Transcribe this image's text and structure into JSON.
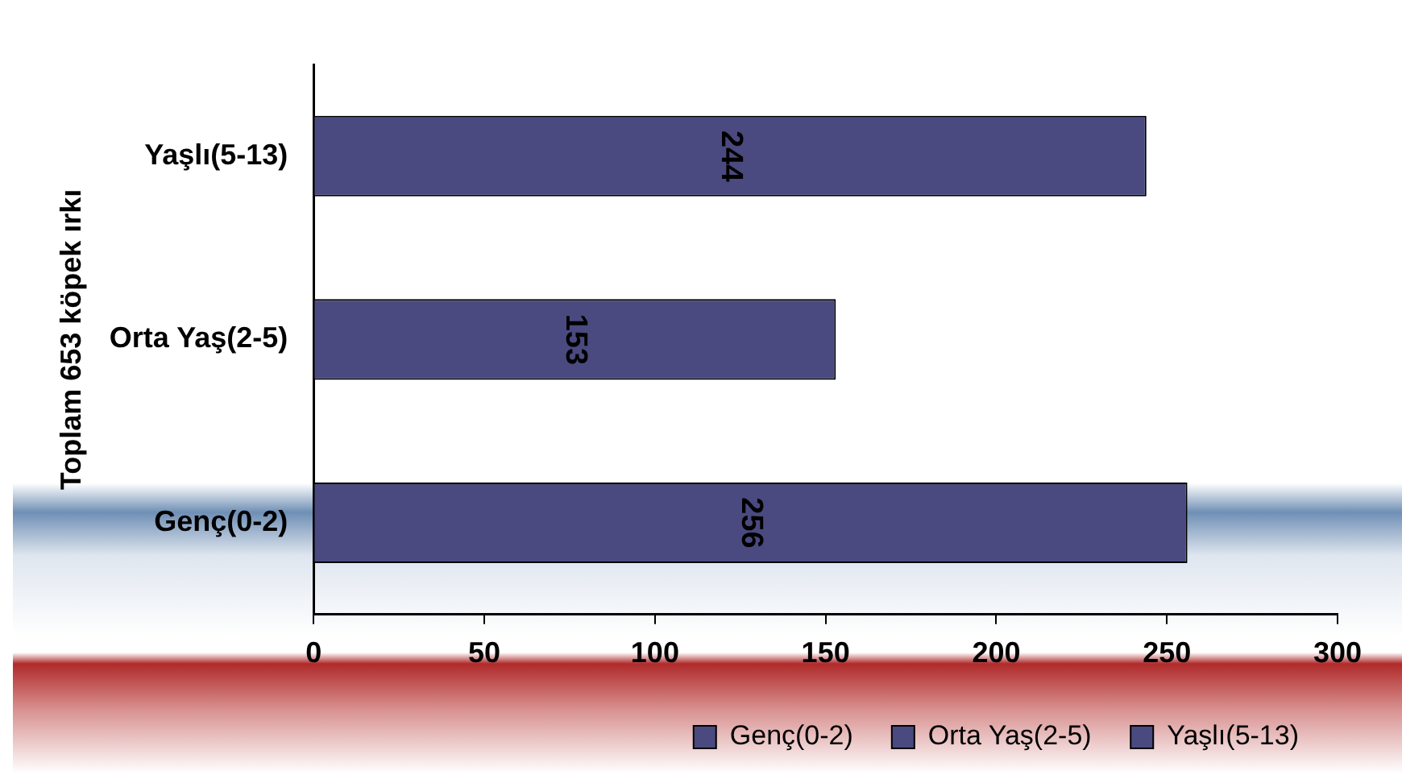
{
  "chart_data": {
    "type": "bar",
    "orientation": "horizontal",
    "stacked": true,
    "ylabel": "Toplam 653 köpek ırkı",
    "categories": [
      "Yaşlı(5-13)",
      "Orta Yaş(2-5)",
      "Genç(0-2)"
    ],
    "series": [
      {
        "name": "Genç(0-2)",
        "color": "#4a4a80",
        "values": [
          null,
          null,
          256
        ]
      },
      {
        "name": "Orta Yaş(2-5)",
        "color": "#4a4a80",
        "values": [
          null,
          153,
          null
        ]
      },
      {
        "name": "Yaşlı(5-13)",
        "color": "#4a4a80",
        "values": [
          244,
          null,
          null
        ]
      }
    ],
    "xlim": [
      0,
      300
    ],
    "xticks": [
      0,
      50,
      100,
      150,
      200,
      250,
      300
    ],
    "grid": false,
    "legend": "bottom",
    "data_labels": true
  }
}
